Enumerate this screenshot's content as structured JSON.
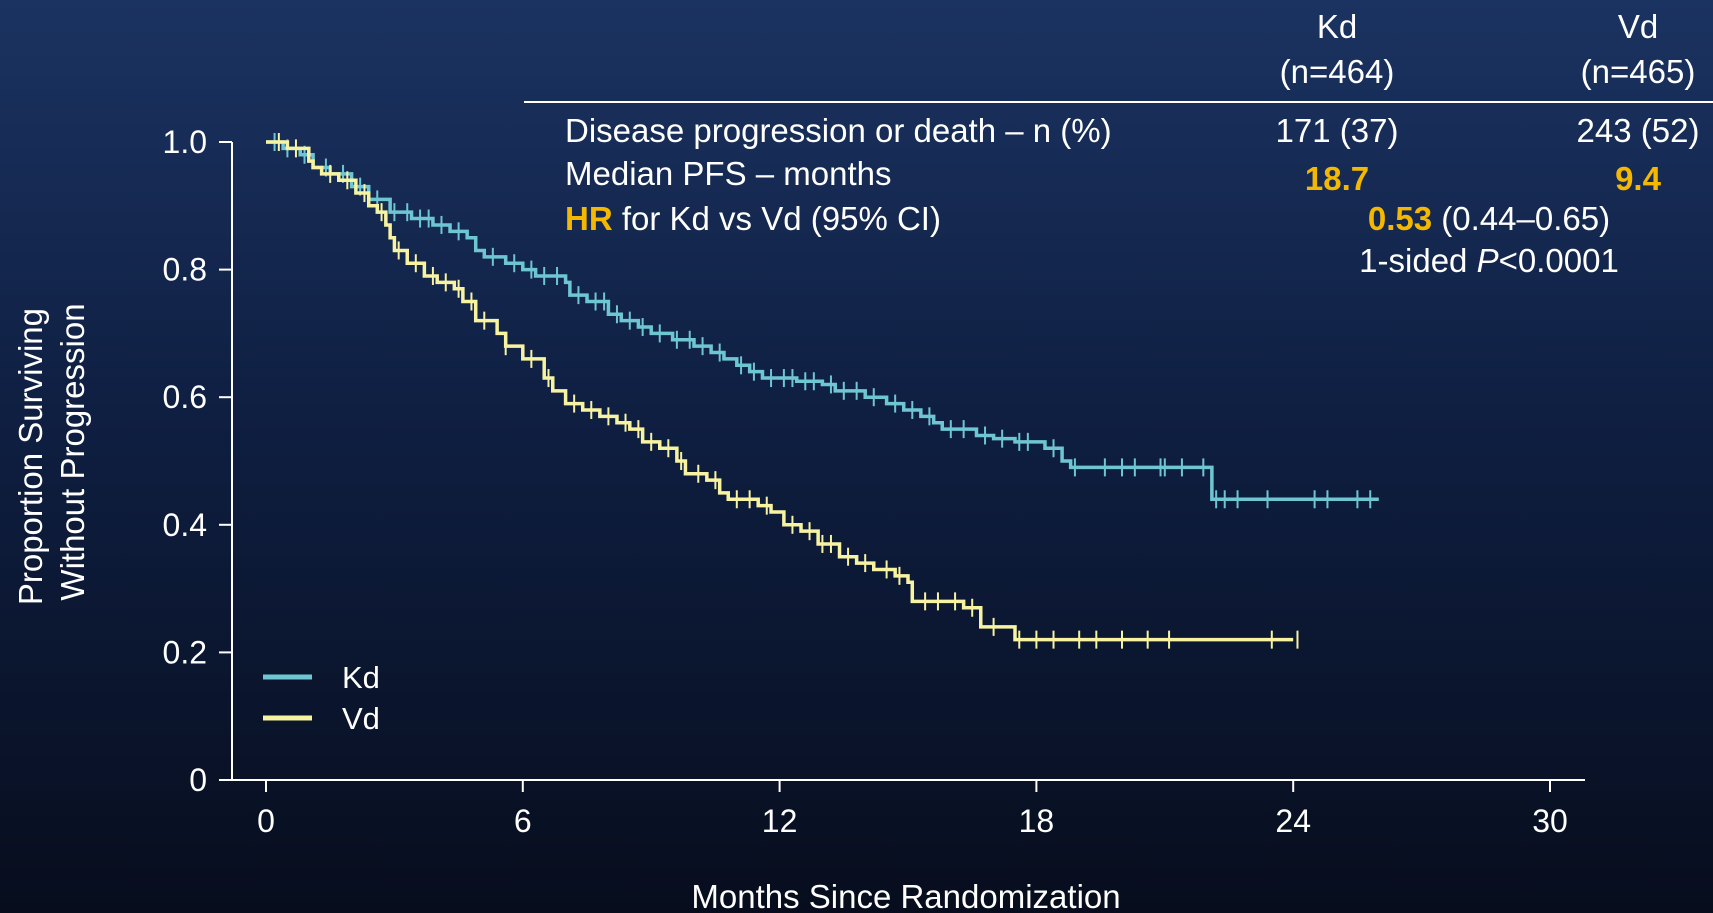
{
  "colors": {
    "kd": "#6fc6d3",
    "vd": "#f7f3a1",
    "highlight": "#f5b800",
    "axis": "#ffffff",
    "text": "#ffffff"
  },
  "table": {
    "columns": [
      {
        "name": "Kd",
        "n": "(n=464)"
      },
      {
        "name": "Vd",
        "n": "(n=465)"
      }
    ],
    "rows": {
      "events": {
        "label": "Disease progression or death – n (%)",
        "kd": "171 (37)",
        "vd": "243 (52)"
      },
      "median": {
        "label": "Median PFS – months",
        "kd": "18.7",
        "vd": "9.4"
      },
      "hr": {
        "label_strong": "HR",
        "label_rest": " for Kd vs Vd (95% CI)",
        "value": "0.53",
        "ci": " (0.44–0.65)"
      },
      "pvalue": {
        "prefix": "1-sided ",
        "p": "P",
        "rest": "<0.0001"
      }
    }
  },
  "chart_data": {
    "type": "line",
    "step": true,
    "xlabel": "Months Since Randomization",
    "ylabel": [
      "Proportion Surviving",
      "Without Progression"
    ],
    "xlim": [
      0,
      30
    ],
    "ylim": [
      0,
      1
    ],
    "xticks": [
      0,
      6,
      12,
      18,
      24,
      30
    ],
    "yticks": [
      0,
      0.2,
      0.4,
      0.6,
      0.8,
      1.0
    ],
    "ytick_labels": [
      "0",
      "0.2",
      "0.4",
      "0.6",
      "0.8",
      "1.0"
    ],
    "legend": {
      "position": "bottom-left"
    },
    "series": [
      {
        "name": "Kd",
        "key": "kd",
        "points": [
          [
            0,
            1.0
          ],
          [
            0.4,
            0.99
          ],
          [
            0.8,
            0.98
          ],
          [
            1.1,
            0.96
          ],
          [
            1.5,
            0.95
          ],
          [
            2.0,
            0.93
          ],
          [
            2.4,
            0.91
          ],
          [
            2.9,
            0.89
          ],
          [
            3.4,
            0.88
          ],
          [
            3.9,
            0.87
          ],
          [
            4.3,
            0.86
          ],
          [
            4.7,
            0.85
          ],
          [
            4.9,
            0.83
          ],
          [
            5.1,
            0.82
          ],
          [
            5.6,
            0.81
          ],
          [
            6.0,
            0.8
          ],
          [
            6.3,
            0.79
          ],
          [
            7.0,
            0.78
          ],
          [
            7.1,
            0.76
          ],
          [
            7.5,
            0.75
          ],
          [
            8.0,
            0.73
          ],
          [
            8.3,
            0.72
          ],
          [
            8.7,
            0.71
          ],
          [
            9.0,
            0.7
          ],
          [
            9.5,
            0.69
          ],
          [
            10.0,
            0.68
          ],
          [
            10.4,
            0.67
          ],
          [
            10.7,
            0.66
          ],
          [
            11.0,
            0.65
          ],
          [
            11.3,
            0.64
          ],
          [
            11.6,
            0.63
          ],
          [
            12.4,
            0.625
          ],
          [
            13.0,
            0.62
          ],
          [
            13.3,
            0.61
          ],
          [
            14.0,
            0.6
          ],
          [
            14.5,
            0.59
          ],
          [
            14.9,
            0.58
          ],
          [
            15.3,
            0.57
          ],
          [
            15.6,
            0.56
          ],
          [
            15.8,
            0.55
          ],
          [
            16.6,
            0.54
          ],
          [
            17.0,
            0.535
          ],
          [
            17.5,
            0.53
          ],
          [
            18.2,
            0.52
          ],
          [
            18.6,
            0.5
          ],
          [
            18.8,
            0.49
          ],
          [
            22.1,
            0.44
          ],
          [
            26.0,
            0.44
          ]
        ],
        "censors": [
          0.2,
          0.5,
          0.9,
          1.4,
          1.8,
          2.2,
          2.6,
          3.0,
          3.3,
          3.6,
          3.8,
          4.1,
          4.5,
          5.3,
          5.8,
          6.2,
          6.5,
          6.8,
          7.3,
          7.7,
          7.9,
          8.2,
          8.5,
          8.8,
          9.2,
          9.6,
          9.9,
          10.2,
          10.6,
          11.1,
          11.4,
          11.8,
          12.1,
          12.3,
          12.6,
          12.8,
          13.2,
          13.5,
          13.8,
          14.2,
          14.7,
          15.1,
          15.5,
          16.0,
          16.3,
          16.8,
          17.2,
          17.6,
          17.8,
          18.4,
          18.9,
          19.6,
          20.0,
          20.3,
          20.9,
          21.0,
          21.4,
          21.9,
          22.2,
          22.4,
          22.7,
          23.4,
          24.5,
          24.8,
          25.5,
          25.8
        ]
      },
      {
        "name": "Vd",
        "key": "vd",
        "points": [
          [
            0,
            1.0
          ],
          [
            0.5,
            0.99
          ],
          [
            1.0,
            0.97
          ],
          [
            1.1,
            0.96
          ],
          [
            1.3,
            0.95
          ],
          [
            1.7,
            0.94
          ],
          [
            2.1,
            0.92
          ],
          [
            2.4,
            0.9
          ],
          [
            2.6,
            0.89
          ],
          [
            2.8,
            0.87
          ],
          [
            2.9,
            0.85
          ],
          [
            3.0,
            0.83
          ],
          [
            3.3,
            0.81
          ],
          [
            3.7,
            0.79
          ],
          [
            4.0,
            0.78
          ],
          [
            4.4,
            0.77
          ],
          [
            4.6,
            0.75
          ],
          [
            4.9,
            0.72
          ],
          [
            5.4,
            0.7
          ],
          [
            5.6,
            0.68
          ],
          [
            6.0,
            0.66
          ],
          [
            6.5,
            0.63
          ],
          [
            6.7,
            0.61
          ],
          [
            7.0,
            0.59
          ],
          [
            7.4,
            0.58
          ],
          [
            7.8,
            0.57
          ],
          [
            8.2,
            0.56
          ],
          [
            8.5,
            0.55
          ],
          [
            8.8,
            0.53
          ],
          [
            9.2,
            0.52
          ],
          [
            9.6,
            0.5
          ],
          [
            9.8,
            0.48
          ],
          [
            10.3,
            0.47
          ],
          [
            10.6,
            0.45
          ],
          [
            10.8,
            0.44
          ],
          [
            11.5,
            0.43
          ],
          [
            11.8,
            0.42
          ],
          [
            12.1,
            0.4
          ],
          [
            12.5,
            0.39
          ],
          [
            12.9,
            0.37
          ],
          [
            13.4,
            0.35
          ],
          [
            13.8,
            0.34
          ],
          [
            14.2,
            0.33
          ],
          [
            14.7,
            0.32
          ],
          [
            15.0,
            0.31
          ],
          [
            15.1,
            0.28
          ],
          [
            16.3,
            0.27
          ],
          [
            16.7,
            0.24
          ],
          [
            17.5,
            0.22
          ],
          [
            24.0,
            0.22
          ]
        ],
        "censors": [
          0.3,
          0.7,
          1.5,
          1.9,
          2.3,
          2.7,
          3.1,
          3.5,
          3.9,
          4.2,
          4.5,
          4.8,
          5.1,
          5.6,
          6.2,
          6.6,
          7.2,
          7.6,
          8.0,
          8.4,
          8.7,
          9.0,
          9.4,
          9.7,
          10.1,
          10.5,
          11.0,
          11.3,
          11.7,
          12.3,
          12.7,
          13.0,
          13.2,
          13.6,
          14.0,
          14.5,
          14.8,
          15.4,
          15.7,
          16.1,
          16.5,
          17.0,
          17.6,
          18.0,
          18.4,
          19.0,
          19.4,
          20.0,
          20.6,
          21.1,
          23.5,
          24.1
        ]
      }
    ]
  }
}
